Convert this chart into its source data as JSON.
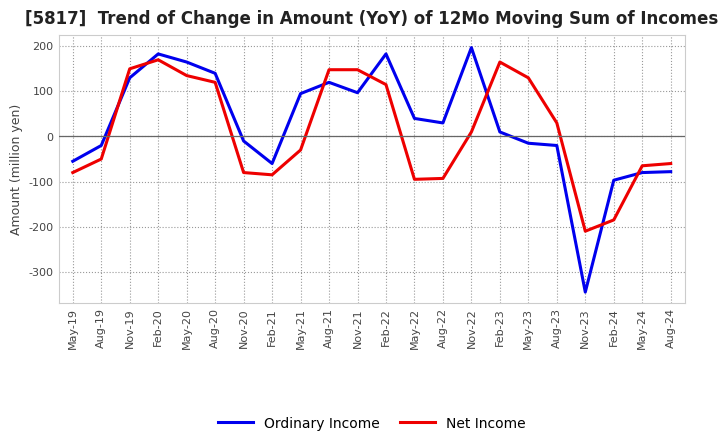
{
  "title": "[5817]  Trend of Change in Amount (YoY) of 12Mo Moving Sum of Incomes",
  "ylabel": "Amount (million yen)",
  "x_labels": [
    "May-19",
    "Aug-19",
    "Nov-19",
    "Feb-20",
    "May-20",
    "Aug-20",
    "Nov-20",
    "Feb-21",
    "May-21",
    "Aug-21",
    "Nov-21",
    "Feb-22",
    "May-22",
    "Aug-22",
    "Nov-22",
    "Feb-23",
    "May-23",
    "Aug-23",
    "Nov-23",
    "Feb-24",
    "May-24",
    "Aug-24"
  ],
  "ordinary_income": [
    -55,
    -20,
    130,
    183,
    165,
    140,
    -10,
    -60,
    95,
    120,
    97,
    183,
    40,
    30,
    197,
    10,
    -15,
    -20,
    -345,
    -97,
    -80,
    -78
  ],
  "net_income": [
    -80,
    -50,
    150,
    170,
    135,
    120,
    -80,
    -85,
    -30,
    148,
    148,
    115,
    -95,
    -93,
    10,
    165,
    130,
    30,
    -210,
    -185,
    -65,
    -60
  ],
  "ordinary_income_color": "#0000ee",
  "net_income_color": "#ee0000",
  "ylim": [
    -370,
    225
  ],
  "yticks": [
    -300,
    -200,
    -100,
    0,
    100,
    200
  ],
  "background_color": "#ffffff",
  "grid_color": "#999999",
  "title_fontsize": 12,
  "axis_fontsize": 9,
  "tick_fontsize": 8,
  "legend_fontsize": 10,
  "linewidth": 2.2
}
